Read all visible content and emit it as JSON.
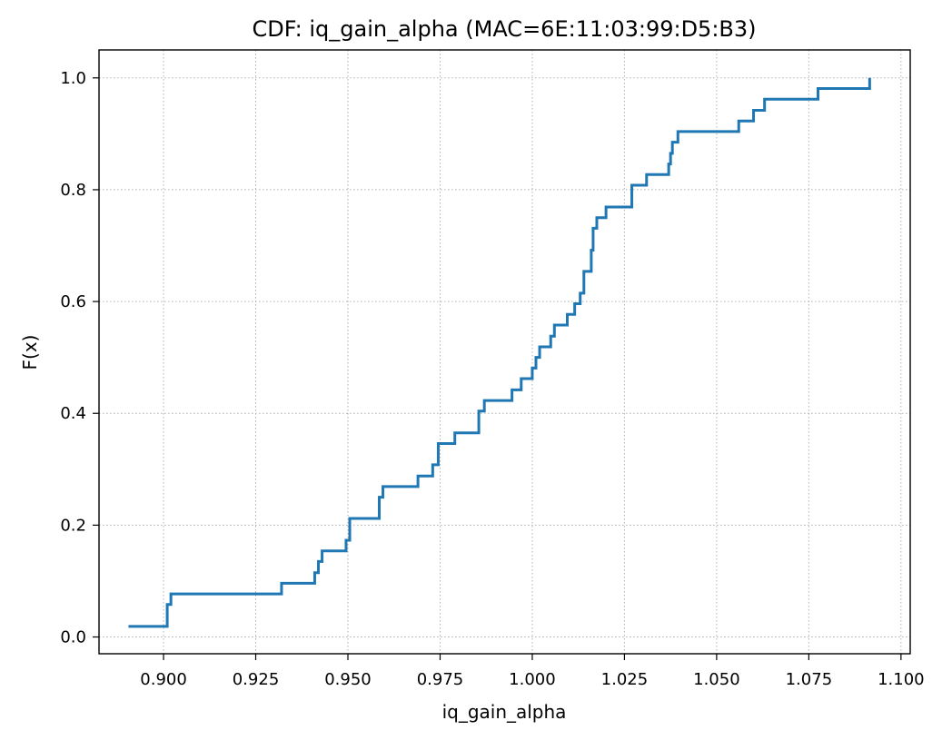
{
  "chart_data": {
    "type": "line",
    "title": "CDF: iq_gain_alpha (MAC=6E:11:03:99:D5:B3)",
    "xlabel": "iq_gain_alpha",
    "ylabel": "F(x)",
    "xlim": [
      0.8825,
      1.1025
    ],
    "ylim": [
      -0.03,
      1.05
    ],
    "grid": true,
    "xticks": [
      0.9,
      0.925,
      0.95,
      0.975,
      1.0,
      1.025,
      1.05,
      1.075,
      1.1
    ],
    "xtick_labels": [
      "0.900",
      "0.925",
      "0.950",
      "0.975",
      "1.000",
      "1.025",
      "1.050",
      "1.075",
      "1.100"
    ],
    "yticks": [
      0.0,
      0.2,
      0.4,
      0.6,
      0.8,
      1.0
    ],
    "ytick_labels": [
      "0.0",
      "0.2",
      "0.4",
      "0.6",
      "0.8",
      "1.0"
    ],
    "series": [
      {
        "color": "#1f77b4",
        "step": "post",
        "x": [
          0.8905,
          0.901,
          0.902,
          0.932,
          0.941,
          0.942,
          0.943,
          0.9495,
          0.9505,
          0.9585,
          0.9595,
          0.969,
          0.973,
          0.9745,
          0.979,
          0.9855,
          0.987,
          0.9945,
          0.997,
          1.0,
          1.001,
          1.002,
          1.005,
          1.006,
          1.0095,
          1.0115,
          1.013,
          1.014,
          1.016,
          1.0165,
          1.0175,
          1.02,
          1.027,
          1.031,
          1.037,
          1.0375,
          1.038,
          1.0395,
          1.0405,
          1.056,
          1.06,
          1.063,
          1.0775,
          1.0915
        ],
        "y": [
          0.019,
          0.058,
          0.077,
          0.096,
          0.115,
          0.135,
          0.154,
          0.173,
          0.212,
          0.25,
          0.269,
          0.288,
          0.308,
          0.346,
          0.365,
          0.404,
          0.423,
          0.442,
          0.462,
          0.481,
          0.5,
          0.519,
          0.538,
          0.558,
          0.577,
          0.596,
          0.615,
          0.654,
          0.692,
          0.731,
          0.75,
          0.769,
          0.808,
          0.827,
          0.846,
          0.865,
          0.885,
          0.904,
          0.904,
          0.923,
          0.942,
          0.962,
          0.981,
          1.0
        ]
      }
    ]
  }
}
